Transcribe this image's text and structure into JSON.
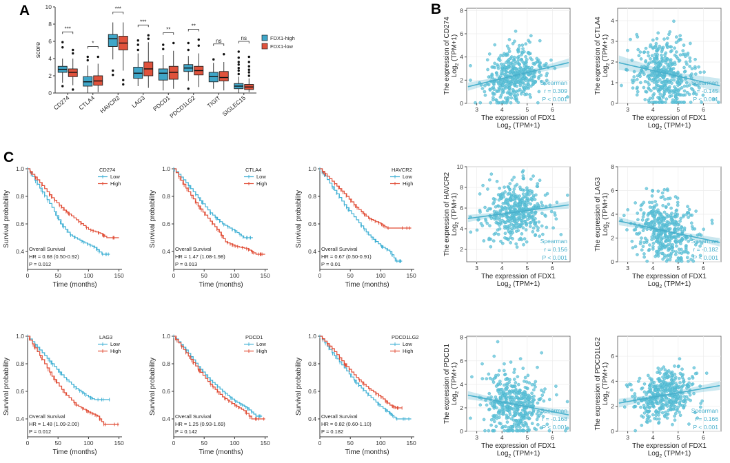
{
  "colors": {
    "high": "#3fa6c8",
    "low": "#e0523c",
    "km_low": "#3fb0d4",
    "km_high": "#e04a33",
    "scatter": "#5fc3d8",
    "scatter_dark": "#48b0cc"
  },
  "panel_labels": {
    "A": "A",
    "B": "B",
    "C": "C"
  },
  "chart_data": [
    {
      "type": "box",
      "panel": "A",
      "ylabel": "score",
      "ylim": [
        0,
        10
      ],
      "yticks": [
        "0",
        "2",
        "4",
        "6",
        "8",
        "10"
      ],
      "categories": [
        "CD274",
        "CTLA4",
        "HAVCR2",
        "LAG3",
        "PDCD1",
        "PDCD1LG2",
        "TIGIT",
        "SIGLEC15"
      ],
      "significance": [
        "***",
        "*",
        "***",
        "***",
        "**",
        "**",
        "ns",
        "ns"
      ],
      "legend": [
        "FDX1-high",
        "FDX1-low"
      ],
      "series": [
        {
          "name": "FDX1-high",
          "boxes": [
            [
              1.2,
              2.4,
              2.75,
              3.1,
              4.0
            ],
            [
              0,
              0.8,
              1.3,
              1.9,
              3.2
            ],
            [
              3.9,
              5.4,
              6.3,
              6.8,
              8.2
            ],
            [
              0.8,
              1.7,
              2.3,
              3.0,
              4.6
            ],
            [
              0.3,
              1.5,
              2.3,
              2.8,
              4.4
            ],
            [
              1.4,
              2.5,
              2.9,
              3.3,
              4.3
            ],
            [
              0.5,
              1.3,
              1.9,
              2.4,
              3.5
            ],
            [
              0,
              0.5,
              0.8,
              1.1,
              1.9
            ]
          ],
          "outliers": [
            [
              5.3,
              5.9,
              0.8
            ],
            [
              3.8,
              4.2
            ],
            [
              2.1,
              2.6
            ],
            [
              5.6,
              6.1,
              5.0
            ],
            [
              5.1,
              5.6
            ],
            [
              5.0,
              5.8,
              0.5
            ],
            [
              3.9
            ],
            [
              2.2,
              2.6,
              2.9,
              3.3,
              3.6,
              4.1,
              4.8
            ]
          ]
        },
        {
          "name": "FDX1-low",
          "boxes": [
            [
              0.9,
              1.9,
              2.4,
              2.8,
              4.0
            ],
            [
              0.1,
              0.9,
              1.4,
              2.0,
              3.4
            ],
            [
              2.6,
              5.0,
              5.8,
              6.6,
              8.2
            ],
            [
              0.6,
              2.0,
              2.8,
              3.6,
              5.9
            ],
            [
              0.5,
              1.6,
              2.4,
              3.1,
              4.9
            ],
            [
              0.7,
              2.1,
              2.6,
              3.1,
              4.6
            ],
            [
              0.3,
              1.4,
              1.8,
              2.5,
              3.6
            ],
            [
              0.1,
              0.4,
              0.7,
              1.0,
              1.7
            ]
          ],
          "outliers": [
            [
              5.0,
              4.6,
              0.4
            ],
            [
              4.2
            ],
            [
              1.5,
              1.0
            ],
            [
              6.7,
              6.3
            ],
            [
              5.8
            ],
            [
              5.5,
              6.2
            ],
            [
              4.5
            ],
            [
              2.0,
              2.4,
              2.7,
              3.1,
              3.6,
              4.2
            ]
          ]
        }
      ]
    },
    {
      "type": "scatter",
      "panel": "B",
      "xlabel_line1": "The expression of FDX1",
      "xlabel_log": "Log",
      "xlabel_sub": "2",
      "xlabel_unit": "(TPM+1)",
      "xticks": [
        "3",
        "4",
        "5",
        "6"
      ],
      "xlim": [
        2.6,
        6.7
      ],
      "method": "Spearman",
      "plots": [
        {
          "gene": "CD274",
          "ylabel_line1": "The expression of CD274",
          "ylim": [
            0,
            8.2
          ],
          "yticks": [
            "0",
            "2",
            "4",
            "6",
            "8"
          ],
          "r_text": "r = 0.309",
          "p_text": "P < 0.001",
          "slope": 0.52,
          "center_y": 2.4,
          "spread": 1.2,
          "seed": 11
        },
        {
          "gene": "CTLA4",
          "ylabel_line1": "The expression of CTLA4",
          "ylim": [
            0,
            4.6
          ],
          "yticks": [
            "0",
            "1",
            "2",
            "3",
            "4"
          ],
          "r_text": "r = -0.145",
          "p_text": "P < 0.001",
          "slope": -0.28,
          "center_y": 1.45,
          "spread": 0.9,
          "seed": 23
        },
        {
          "gene": "HAVCR2",
          "ylabel_line1": "The expression of HAVCR2",
          "ylim": [
            0.8,
            10
          ],
          "yticks": [
            "2",
            "4",
            "6",
            "8",
            "10"
          ],
          "r_text": "r = 0.156",
          "p_text": "P < 0.001",
          "slope": 0.33,
          "center_y": 5.6,
          "spread": 1.4,
          "seed": 37
        },
        {
          "gene": "LAG3",
          "ylabel_line1": "The expression of LAG3",
          "ylim": [
            0,
            8
          ],
          "yticks": [
            "0",
            "2",
            "4",
            "6",
            "8"
          ],
          "r_text": "r = -0.182",
          "p_text": "P < 0.001",
          "slope": -0.45,
          "center_y": 2.6,
          "spread": 1.3,
          "seed": 41
        },
        {
          "gene": "PDCD1",
          "ylabel_line1": "The expression of PDCD1",
          "ylim": [
            0,
            8.1
          ],
          "yticks": [
            "0",
            "2",
            "4",
            "6",
            "8"
          ],
          "r_text": "r = -0.168",
          "p_text": "P < 0.001",
          "slope": -0.42,
          "center_y": 2.3,
          "spread": 1.3,
          "seed": 53
        },
        {
          "gene": "PDCD1LG2",
          "ylabel_line1": "The expression of PDCD1LG2",
          "ylim": [
            0,
            7.6
          ],
          "yticks": [
            "0",
            "2",
            "4",
            "6"
          ],
          "r_text": "r = 0.166",
          "p_text": "P < 0.001",
          "slope": 0.35,
          "center_y": 2.9,
          "spread": 0.95,
          "seed": 67
        }
      ]
    },
    {
      "type": "survival",
      "panel": "C",
      "xlabel": "Time (months)",
      "ylabel": "Survival probability",
      "xlim": [
        0,
        155
      ],
      "xticks": [
        "0",
        "50",
        "100",
        "150"
      ],
      "yticks": [
        "0.4",
        "0.6",
        "0.8",
        "1.0"
      ],
      "legend": [
        "Low",
        "High"
      ],
      "subtitle": "Overall Survival",
      "plots": [
        {
          "gene": "CD274",
          "hr": "HR = 0.68 (0.50-0.92)",
          "p": "P = 0.012",
          "low": [
            [
              0,
              1.0
            ],
            [
              20,
              0.86
            ],
            [
              40,
              0.72
            ],
            [
              55,
              0.6
            ],
            [
              70,
              0.52
            ],
            [
              90,
              0.47
            ],
            [
              110,
              0.43
            ],
            [
              122,
              0.38
            ],
            [
              135,
              0.38
            ]
          ],
          "high": [
            [
              0,
              1.0
            ],
            [
              20,
              0.9
            ],
            [
              40,
              0.79
            ],
            [
              60,
              0.7
            ],
            [
              80,
              0.63
            ],
            [
              100,
              0.56
            ],
            [
              120,
              0.53
            ],
            [
              130,
              0.5
            ],
            [
              150,
              0.5
            ]
          ]
        },
        {
          "gene": "CTLA4",
          "hr": "HR = 1.47 (1.08-1.98)",
          "p": "P = 0.013",
          "low": [
            [
              0,
              1.0
            ],
            [
              20,
              0.9
            ],
            [
              40,
              0.79
            ],
            [
              60,
              0.68
            ],
            [
              80,
              0.6
            ],
            [
              100,
              0.55
            ],
            [
              115,
              0.5
            ],
            [
              130,
              0.5
            ]
          ],
          "high": [
            [
              0,
              1.0
            ],
            [
              20,
              0.86
            ],
            [
              40,
              0.73
            ],
            [
              60,
              0.62
            ],
            [
              75,
              0.54
            ],
            [
              85,
              0.47
            ],
            [
              100,
              0.44
            ],
            [
              120,
              0.42
            ],
            [
              135,
              0.38
            ],
            [
              150,
              0.38
            ]
          ]
        },
        {
          "gene": "HAVCR2",
          "hr": "HR = 0.67 (0.50-0.91)",
          "p": "P = 0.01",
          "low": [
            [
              0,
              1.0
            ],
            [
              20,
              0.87
            ],
            [
              40,
              0.74
            ],
            [
              60,
              0.63
            ],
            [
              80,
              0.52
            ],
            [
              100,
              0.44
            ],
            [
              115,
              0.4
            ],
            [
              125,
              0.33
            ],
            [
              135,
              0.33
            ]
          ],
          "high": [
            [
              0,
              1.0
            ],
            [
              20,
              0.91
            ],
            [
              40,
              0.82
            ],
            [
              60,
              0.72
            ],
            [
              80,
              0.64
            ],
            [
              100,
              0.6
            ],
            [
              110,
              0.57
            ],
            [
              150,
              0.57
            ]
          ]
        },
        {
          "gene": "LAG3",
          "hr": "HR = 1.48 (1.09-2.00)",
          "p": "P = 0.012",
          "low": [
            [
              0,
              1.0
            ],
            [
              20,
              0.9
            ],
            [
              40,
              0.8
            ],
            [
              60,
              0.7
            ],
            [
              80,
              0.62
            ],
            [
              100,
              0.56
            ],
            [
              110,
              0.54
            ],
            [
              135,
              0.54
            ]
          ],
          "high": [
            [
              0,
              1.0
            ],
            [
              20,
              0.86
            ],
            [
              40,
              0.71
            ],
            [
              60,
              0.59
            ],
            [
              80,
              0.5
            ],
            [
              100,
              0.45
            ],
            [
              115,
              0.42
            ],
            [
              125,
              0.36
            ],
            [
              150,
              0.36
            ]
          ]
        },
        {
          "gene": "PDCD1",
          "hr": "HR = 1.25 (0.93-1.69)",
          "p": "P = 0.142",
          "low": [
            [
              0,
              1.0
            ],
            [
              20,
              0.9
            ],
            [
              40,
              0.78
            ],
            [
              60,
              0.68
            ],
            [
              80,
              0.6
            ],
            [
              100,
              0.53
            ],
            [
              120,
              0.48
            ],
            [
              135,
              0.42
            ],
            [
              145,
              0.42
            ]
          ],
          "high": [
            [
              0,
              1.0
            ],
            [
              20,
              0.88
            ],
            [
              40,
              0.76
            ],
            [
              60,
              0.65
            ],
            [
              80,
              0.56
            ],
            [
              100,
              0.5
            ],
            [
              115,
              0.46
            ],
            [
              128,
              0.4
            ],
            [
              150,
              0.4
            ]
          ]
        },
        {
          "gene": "PDCD1LG2",
          "hr": "HR = 0.82 (0.60-1.10)",
          "p": "P = 0.182",
          "low": [
            [
              0,
              1.0
            ],
            [
              20,
              0.88
            ],
            [
              40,
              0.77
            ],
            [
              60,
              0.66
            ],
            [
              80,
              0.57
            ],
            [
              100,
              0.49
            ],
            [
              115,
              0.44
            ],
            [
              125,
              0.4
            ],
            [
              150,
              0.4
            ]
          ],
          "high": [
            [
              0,
              1.0
            ],
            [
              20,
              0.91
            ],
            [
              40,
              0.8
            ],
            [
              60,
              0.7
            ],
            [
              80,
              0.62
            ],
            [
              100,
              0.56
            ],
            [
              115,
              0.5
            ],
            [
              125,
              0.48
            ],
            [
              135,
              0.48
            ]
          ]
        }
      ]
    }
  ]
}
